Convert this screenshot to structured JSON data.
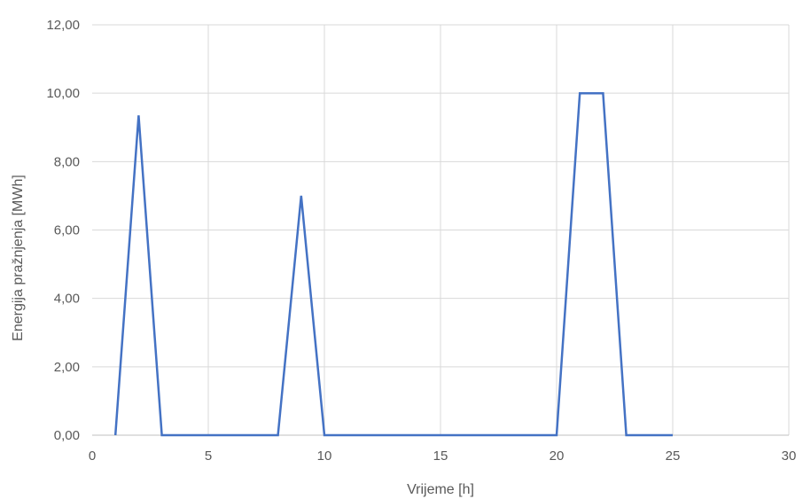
{
  "chart_data": {
    "type": "line",
    "title": "",
    "xlabel": "Vrijeme [h]",
    "ylabel": "Energija pražnjenja [MWh]",
    "xlim": [
      0,
      30
    ],
    "ylim": [
      0,
      12
    ],
    "x_ticks": [
      0,
      5,
      10,
      15,
      20,
      25,
      30
    ],
    "y_ticks": [
      0,
      2,
      4,
      6,
      8,
      10,
      12
    ],
    "x_tick_labels": [
      "0",
      "5",
      "10",
      "15",
      "20",
      "25",
      "30"
    ],
    "y_tick_labels": [
      "0,00",
      "2,00",
      "4,00",
      "6,00",
      "8,00",
      "10,00",
      "12,00"
    ],
    "grid": true,
    "legend": "none",
    "series": [
      {
        "color": "#4472C4",
        "x": [
          1,
          2,
          3,
          4,
          5,
          6,
          7,
          8,
          9,
          10,
          11,
          12,
          13,
          14,
          15,
          16,
          17,
          18,
          19,
          20,
          21,
          22,
          23,
          24,
          25
        ],
        "y": [
          0,
          9.35,
          0,
          0,
          0,
          0,
          0,
          0,
          7.0,
          0,
          0,
          0,
          0,
          0,
          0,
          0,
          0,
          0,
          0,
          0,
          10.0,
          10.0,
          0,
          0,
          0
        ]
      }
    ]
  }
}
